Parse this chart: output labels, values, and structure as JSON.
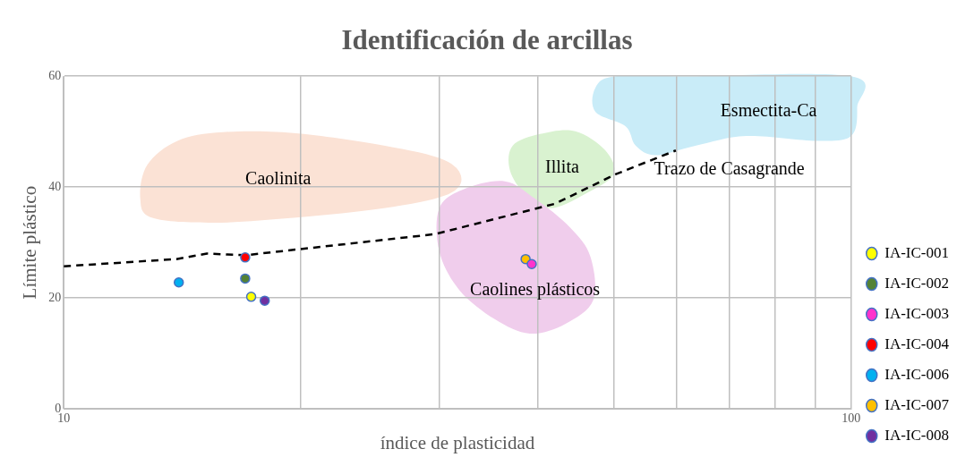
{
  "chart_data": {
    "type": "scatter",
    "title": "Identificación de arcillas",
    "xlabel": "índice de plasticidad",
    "ylabel": "Límite plástico",
    "log": "x",
    "grid": true,
    "legend": "right",
    "marker": "circle",
    "xlim": [
      10,
      100
    ],
    "xticks": [
      10,
      {
        "value": 20,
        "label": null
      },
      {
        "value": 30,
        "label": null
      },
      {
        "value": 40,
        "label": null
      },
      {
        "value": 50,
        "label": null
      },
      {
        "value": 60,
        "label": null
      },
      {
        "value": 70,
        "label": null
      },
      {
        "value": 80,
        "label": null
      },
      {
        "value": 90,
        "label": null
      },
      100
    ],
    "ylim": [
      0,
      60
    ],
    "yticks": [
      0,
      20,
      40,
      60
    ],
    "series": [
      {
        "name": "IA-IC-001",
        "color": "#ffff00",
        "x": [
          17.3
        ],
        "values": [
          20.2
        ]
      },
      {
        "name": "IA-IC-002",
        "color": "#548235",
        "x": [
          17.0
        ],
        "values": [
          23.5
        ]
      },
      {
        "name": "IA-IC-003",
        "color": "#ff33cc",
        "x": [
          39.3
        ],
        "values": [
          26.1
        ]
      },
      {
        "name": "IA-IC-004",
        "color": "#ff0000",
        "x": [
          17.0
        ],
        "values": [
          27.3
        ]
      },
      {
        "name": "IA-IC-006",
        "color": "#00b0f0",
        "x": [
          14.0
        ],
        "values": [
          22.8
        ]
      },
      {
        "name": "IA-IC-007",
        "color": "#ffc000",
        "x": [
          38.6
        ],
        "values": [
          27.0
        ]
      },
      {
        "name": "IA-IC-008",
        "color": "#7030a0",
        "x": [
          18.0
        ],
        "values": [
          19.5
        ]
      },
      {
        "type": "line",
        "color": "#000000",
        "line_style": "dashed",
        "marker": "none",
        "x": [
          10,
          13.9,
          15.2,
          17.0,
          29.6,
          42.1,
          50.2,
          59.9
        ],
        "values": [
          25.7,
          27.0,
          28.0,
          27.7,
          31.5,
          37.0,
          42.3,
          46.6
        ]
      }
    ],
    "annotations": [
      "Caolinita",
      "Illita",
      "Trazo de Casagrande",
      "Caolines plásticos",
      "Esmectita-Ca"
    ]
  }
}
